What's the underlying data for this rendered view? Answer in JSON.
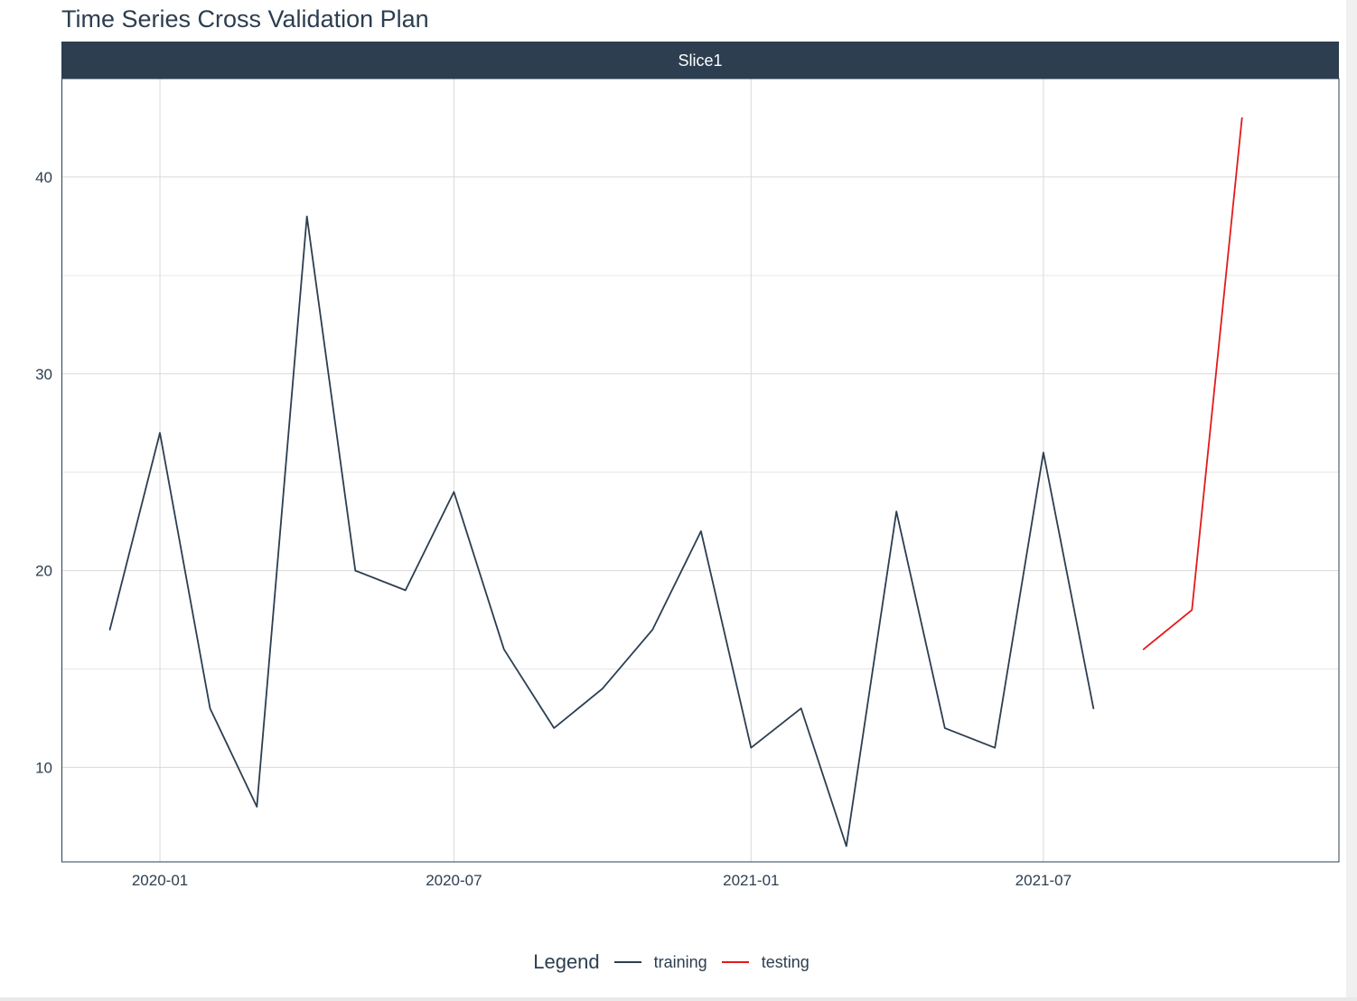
{
  "chart_data": {
    "type": "line",
    "title": "Time Series Cross Validation Plan",
    "facet_label": "Slice1",
    "xlabel": "",
    "ylabel": "",
    "x_tick_labels": [
      "2020-01",
      "2020-07",
      "2021-01",
      "2021-07"
    ],
    "x_tick_dates": [
      "2020-01-01",
      "2020-07-01",
      "2021-01-01",
      "2021-07-01"
    ],
    "y_ticks": [
      10,
      20,
      30,
      40
    ],
    "xlim": [
      "2019-11-01",
      "2021-12-31"
    ],
    "ylim": [
      5.2,
      45.0
    ],
    "legend_title": "Legend",
    "legend_position": "bottom",
    "grid": true,
    "series": [
      {
        "name": "training",
        "color": "#2c3e50",
        "x": [
          "2019-12-01",
          "2020-01-01",
          "2020-02-01",
          "2020-03-01",
          "2020-04-01",
          "2020-05-01",
          "2020-06-01",
          "2020-07-01",
          "2020-08-01",
          "2020-09-01",
          "2020-10-01",
          "2020-11-01",
          "2020-12-01",
          "2021-01-01",
          "2021-02-01",
          "2021-03-01",
          "2021-04-01",
          "2021-05-01",
          "2021-06-01",
          "2021-07-01",
          "2021-08-01"
        ],
        "y": [
          17,
          27,
          13,
          8,
          38,
          20,
          19,
          24,
          16,
          12,
          14,
          17,
          22,
          11,
          13,
          6,
          23,
          12,
          11,
          26,
          13
        ]
      },
      {
        "name": "testing",
        "color": "#e31a1c",
        "x": [
          "2021-09-01",
          "2021-10-01",
          "2021-11-01"
        ],
        "y": [
          16,
          18,
          43
        ]
      }
    ]
  }
}
